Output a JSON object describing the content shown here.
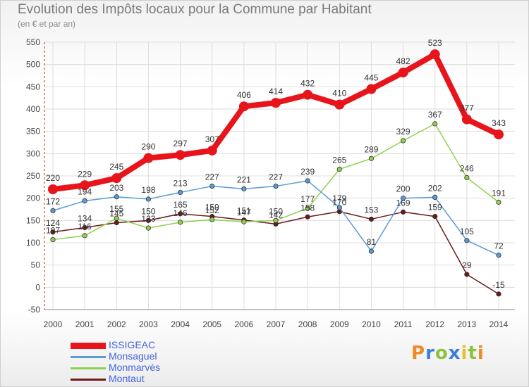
{
  "header": {
    "title": "Evolution des Impôts locaux pour la Commune par Habitant",
    "subtitle": "(en € et par an)"
  },
  "logo": {
    "text": "Proxiti",
    "colors": [
      "#f08a24",
      "#3d7ed9",
      "#8fc23f",
      "#3d7ed9",
      "#e8c22c",
      "#8fc23f",
      "#f08a24"
    ]
  },
  "chart_data": {
    "type": "line",
    "title": "Evolution des Impôts locaux pour la Commune par Habitant",
    "subtitle": "(en € et par an)",
    "x": [
      "2000",
      "2001",
      "2002",
      "2003",
      "2004",
      "2005",
      "2006",
      "2007",
      "2008",
      "2009",
      "2010",
      "2011",
      "2012",
      "2013",
      "2014"
    ],
    "ylim": [
      -50,
      550
    ],
    "yticks": [
      -50,
      0,
      50,
      100,
      150,
      200,
      250,
      300,
      350,
      400,
      450,
      500,
      550
    ],
    "grid": true,
    "legend_position": "bottom-left",
    "series": [
      {
        "name": "ISSIGEAC",
        "color": "#e8141c",
        "values": [
          220,
          229,
          245,
          290,
          297,
          307,
          406,
          414,
          432,
          410,
          445,
          482,
          523,
          377,
          343
        ],
        "labels": [
          "220",
          "229",
          "245",
          "290",
          "297",
          "307",
          "406",
          "414",
          "432",
          "410",
          "445",
          "482",
          "523",
          "377",
          "343"
        ]
      },
      {
        "name": "Monsaguel",
        "color": "#5b9bd5",
        "values": [
          172,
          194,
          203,
          198,
          213,
          227,
          221,
          227,
          239,
          179,
          81,
          200,
          202,
          105,
          72
        ],
        "labels": [
          "172",
          "194",
          "203",
          "198",
          "213",
          "227",
          "221",
          "227",
          "239",
          "179",
          "81",
          "200",
          "202",
          "105",
          "72"
        ]
      },
      {
        "name": "Monmarvès",
        "color": "#8fd14f",
        "values": [
          107,
          116,
          155,
          133,
          146,
          152,
          147,
          150,
          177,
          265,
          289,
          329,
          367,
          246,
          191
        ],
        "labels": [
          "107",
          "116",
          "155",
          "133",
          "146",
          "152",
          "147",
          "150",
          "177",
          "265",
          "289",
          "329",
          "367",
          "246",
          "191"
        ]
      },
      {
        "name": "Montaut",
        "color": "#6b1a1a",
        "values": [
          124,
          134,
          145,
          150,
          165,
          159,
          151,
          142,
          158,
          170,
          153,
          169,
          159,
          29,
          -15
        ],
        "labels": [
          "124",
          "134",
          "145",
          "150",
          "165",
          "159",
          "151",
          "142",
          "158",
          "170",
          "153",
          "169",
          "159",
          "29",
          "-15"
        ]
      }
    ]
  }
}
